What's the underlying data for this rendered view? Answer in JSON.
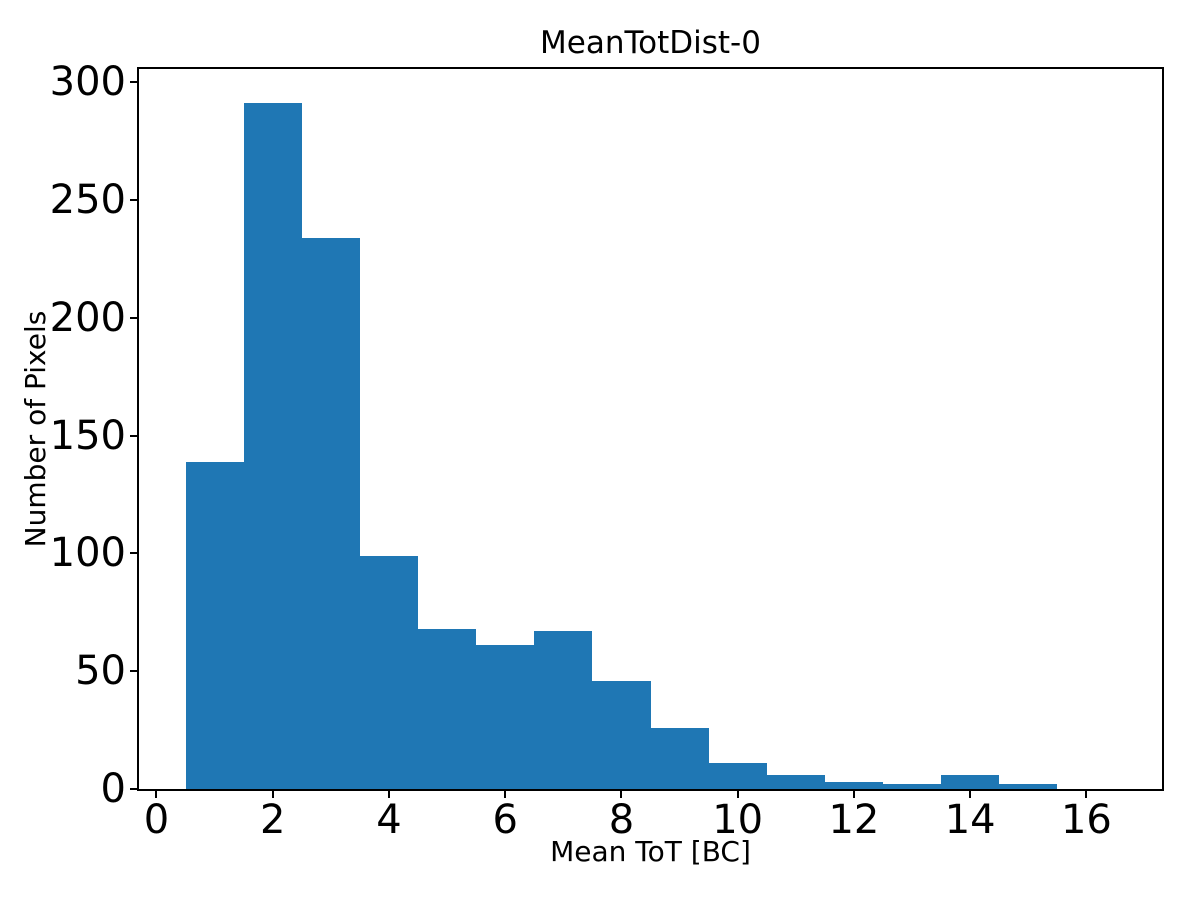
{
  "chart_data": {
    "type": "bar",
    "subtype": "histogram",
    "title": "MeanTotDist-0",
    "xlabel": "Mean ToT [BC]",
    "ylabel": "Number of Pixels",
    "bin_edges": [
      0.5,
      1.5,
      2.5,
      3.5,
      4.5,
      5.5,
      6.5,
      7.5,
      8.5,
      9.5,
      10.5,
      11.5,
      12.5,
      13.5,
      14.5,
      15.5,
      16.5
    ],
    "counts": [
      139,
      291,
      234,
      99,
      68,
      61,
      67,
      46,
      26,
      11,
      6,
      3,
      2,
      6,
      2,
      0
    ],
    "x_ticks": [
      0,
      2,
      4,
      6,
      8,
      10,
      12,
      14,
      16
    ],
    "y_ticks": [
      0,
      50,
      100,
      150,
      200,
      250,
      300
    ],
    "xlim": [
      -0.3,
      17.3
    ],
    "ylim": [
      0,
      305.6
    ],
    "bar_color": "#1f77b4",
    "axis_color": "#000000",
    "text_color": "#000000",
    "background_color": "#ffffff",
    "grid": false,
    "legend": null
  }
}
